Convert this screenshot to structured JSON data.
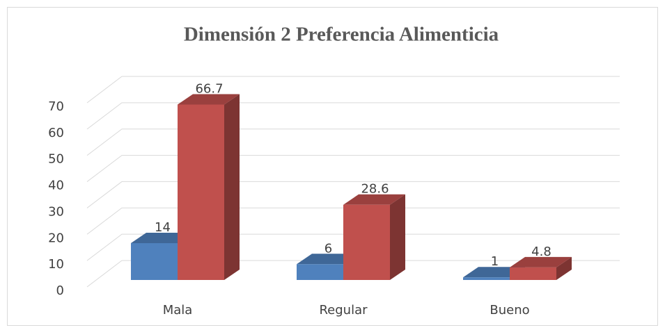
{
  "chart_data": {
    "type": "bar3d",
    "title": "Dimensión 2 Preferencia Alimenticia",
    "categories": [
      "Mala",
      "Regular",
      "Bueno"
    ],
    "series": [
      {
        "color": "#4f81bd",
        "values": [
          14,
          6,
          1
        ]
      },
      {
        "color": "#c0504d",
        "values": [
          66.7,
          28.6,
          4.8
        ]
      }
    ],
    "ylim": [
      0,
      70
    ],
    "yticks": [
      0,
      10,
      20,
      30,
      40,
      50,
      60,
      70
    ],
    "grid": true
  }
}
